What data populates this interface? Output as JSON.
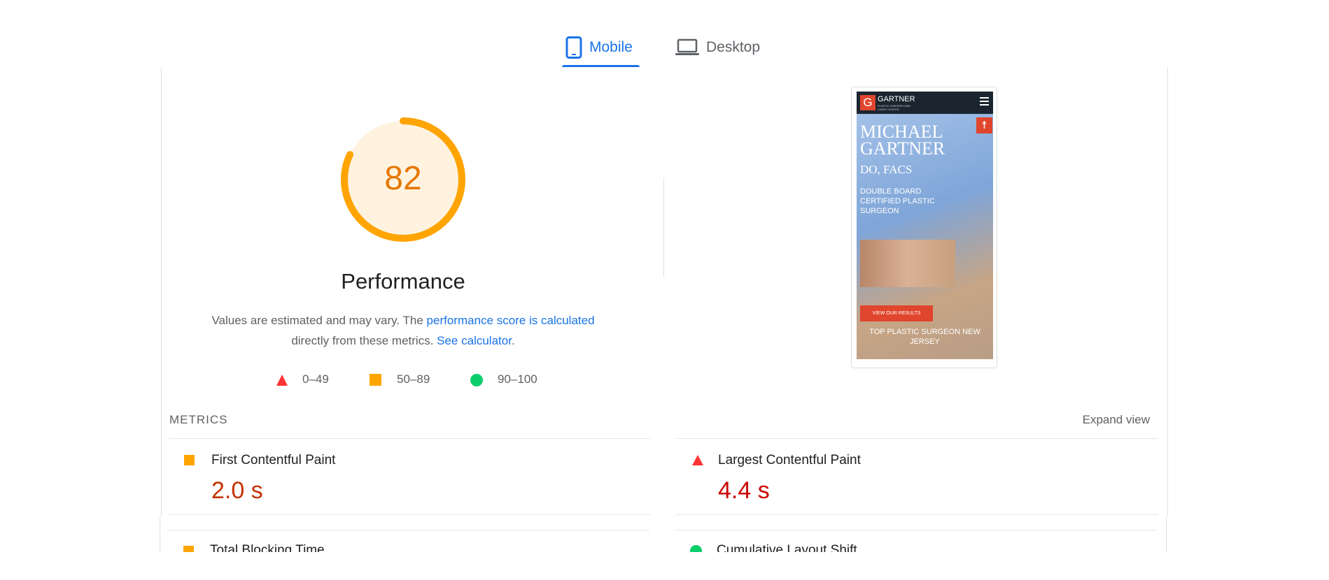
{
  "tabs": [
    {
      "label": "Mobile",
      "icon": "phone-icon",
      "active": true
    },
    {
      "label": "Desktop",
      "icon": "laptop-icon",
      "active": false
    }
  ],
  "score": {
    "value": "82",
    "percent": 82,
    "color": "#ffa400",
    "bg": "#fff3e0",
    "title": "Performance"
  },
  "description": {
    "text1": "Values are estimated and may vary. The ",
    "link1": "performance score is calculated",
    "text2": "directly from these metrics. ",
    "link2": "See calculator",
    "text3": "."
  },
  "legend": [
    {
      "icon": "triangle-icon",
      "range": "0–49",
      "color": "#ff3333"
    },
    {
      "icon": "square-icon",
      "range": "50–89",
      "color": "#ffa400"
    },
    {
      "icon": "circle-icon",
      "range": "90–100",
      "color": "#0cce6b"
    }
  ],
  "screenshot": {
    "brand": "GARTNER",
    "brand_sub": "PLASTIC SURGERY AND LASER CENTER",
    "name1": "MICHAEL",
    "name2": "GARTNER",
    "creds": "DO, FACS",
    "tagline": "DOUBLE BOARD CERTIFIED PLASTIC SURGEON",
    "cta": "VIEW OUR RESULTS",
    "footer": "TOP PLASTIC SURGEON NEW JERSEY"
  },
  "metrics": {
    "heading": "METRICS",
    "expand": "Expand view",
    "items": [
      {
        "label": "First Contentful Paint",
        "value": "2.0 s",
        "status": "average",
        "color": "#c33300"
      },
      {
        "label": "Largest Contentful Paint",
        "value": "4.4 s",
        "status": "fail",
        "color": "#cc0000"
      },
      {
        "label": "Total Blocking Time",
        "value": "",
        "status": "average"
      },
      {
        "label": "Cumulative Layout Shift",
        "value": "",
        "status": "pass"
      }
    ]
  }
}
